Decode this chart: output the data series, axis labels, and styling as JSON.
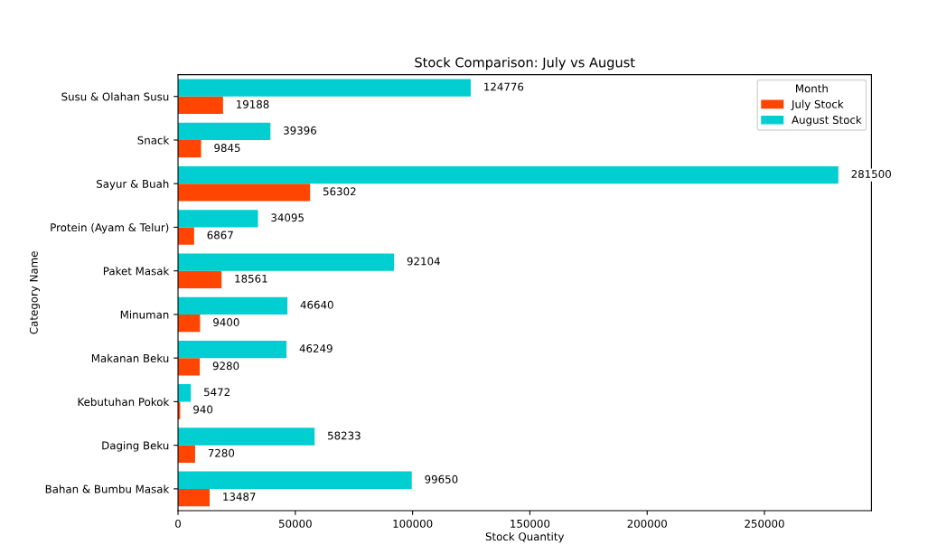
{
  "chart_data": {
    "type": "bar",
    "orientation": "horizontal",
    "title": "Stock Comparison: July vs August",
    "xlabel": "Stock Quantity",
    "ylabel": "Category Name",
    "legend_title": "Month",
    "categories": [
      "Susu & Olahan Susu",
      "Snack",
      "Sayur & Buah",
      "Protein (Ayam & Telur)",
      "Paket Masak",
      "Minuman",
      "Makanan Beku",
      "Kebutuhan Pokok",
      "Daging Beku",
      "Bahan & Bumbu Masak"
    ],
    "series": [
      {
        "name": "July Stock",
        "color": "#ff4500",
        "values": [
          19188,
          9845,
          56302,
          6867,
          18561,
          9400,
          9280,
          940,
          7280,
          13487
        ]
      },
      {
        "name": "August Stock",
        "color": "#00ced1",
        "values": [
          124776,
          39396,
          281500,
          34095,
          92104,
          46640,
          46249,
          5472,
          58233,
          99650
        ]
      }
    ],
    "xlim": [
      0,
      295600
    ],
    "xticks": [
      0,
      50000,
      100000,
      150000,
      200000,
      250000
    ],
    "data_labels": true,
    "legend": "top right",
    "grid": false
  }
}
